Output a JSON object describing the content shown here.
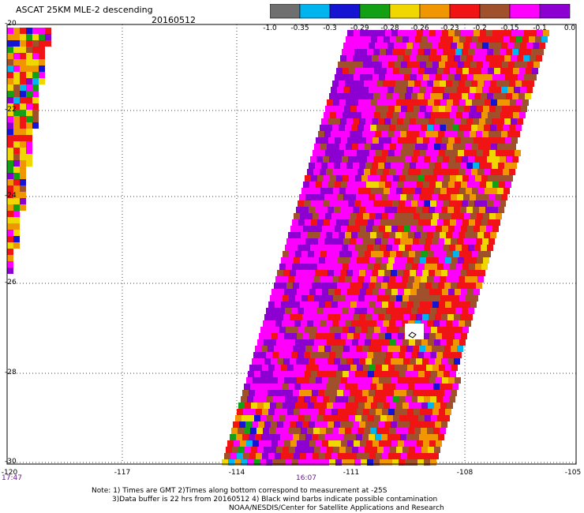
{
  "title": "ASCAT 25KM MLE-2 descending",
  "date": "20160512",
  "legend": {
    "colors": [
      "#6f6f6f",
      "#00b4f0",
      "#1414d2",
      "#14a014",
      "#f0d700",
      "#f09600",
      "#f01414",
      "#a0502a",
      "#ff00ff",
      "#8c00d2"
    ],
    "labels": [
      "-1.0",
      "-0.35",
      "-0.3",
      "-0.29",
      "-0.28",
      "-0.26",
      "-0.23",
      "-0.2",
      "-0.15",
      "-0.1",
      "0.0"
    ]
  },
  "axes": {
    "y_ticks": [
      "-20",
      "-22",
      "-24",
      "-26",
      "-28",
      "-30"
    ],
    "x_ticks": [
      "-120",
      "-117",
      "-114",
      "-111",
      "-108",
      "-105"
    ]
  },
  "times": [
    "17:47",
    "16:07"
  ],
  "notes": [
    "Note: 1) Times are GMT 2)Times along bottom correspond to measurement at -25S",
    "3)Data buffer is 22 hrs from 20160512 4) Black wind barbs indicate possible contamination",
    "NOAA/NESDIS/Center for Satellite Applications and Research"
  ]
}
